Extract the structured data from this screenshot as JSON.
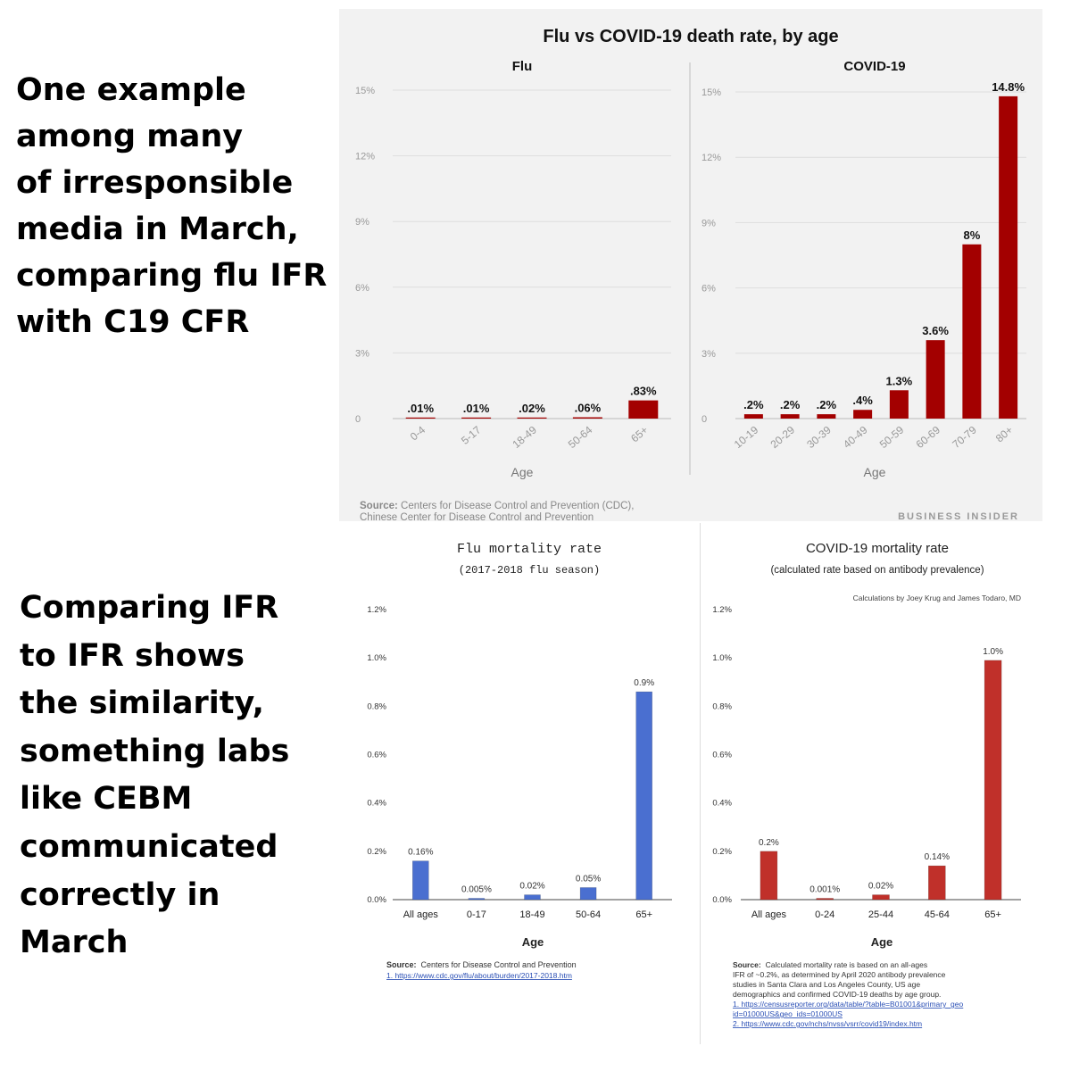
{
  "captions": {
    "top": "One example\namong many\nof irresponsible\nmedia in March,\ncomparing flu IFR\nwith C19 CFR",
    "bottom": "Comparing IFR\nto IFR shows\nthe similarity,\nsomething labs\nlike CEBM\ncommunicated\ncorrectly in\nMarch"
  },
  "colors": {
    "dark_red": "#a30000",
    "blue": "#4a6fd0",
    "red": "#c0302a"
  },
  "chart_data": [
    {
      "id": "bi_flu",
      "type": "bar",
      "title": "Flu vs COVID-19 death rate, by age",
      "subtitle": "Flu",
      "categories": [
        "0-4",
        "5-17",
        "18-49",
        "50-64",
        "65+"
      ],
      "values": [
        0.01,
        0.01,
        0.02,
        0.06,
        0.83
      ],
      "labels": [
        ".01%",
        ".01%",
        ".02%",
        ".06%",
        ".83%"
      ],
      "xlabel": "Age",
      "ylim": [
        0,
        15
      ],
      "yticks": [
        0,
        3,
        6,
        9,
        12,
        15
      ],
      "ytick_labels": [
        "0",
        "3%",
        "6%",
        "9%",
        "12%",
        "15%"
      ],
      "grid": true
    },
    {
      "id": "bi_covid",
      "type": "bar",
      "subtitle": "COVID-19",
      "categories": [
        "10-19",
        "20-29",
        "30-39",
        "40-49",
        "50-59",
        "60-69",
        "70-79",
        "80+"
      ],
      "values": [
        0.2,
        0.2,
        0.2,
        0.4,
        1.3,
        3.6,
        8,
        14.8
      ],
      "labels": [
        ".2%",
        ".2%",
        ".2%",
        ".4%",
        "1.3%",
        "3.6%",
        "8%",
        "14.8%"
      ],
      "xlabel": "Age",
      "ylim": [
        0,
        15
      ],
      "yticks": [
        0,
        3,
        6,
        9,
        12,
        15
      ],
      "ytick_labels": [
        "0",
        "3%",
        "6%",
        "9%",
        "12%",
        "15%"
      ],
      "grid": true,
      "source": "Source: Centers for Disease Control and Prevention (CDC),\nChinese Center for Disease Control and Prevention",
      "brand": "BUSINESS INSIDER"
    },
    {
      "id": "flu_mortality",
      "type": "bar",
      "title": "Flu mortality rate",
      "subtitle": "(2017-2018 flu season)",
      "categories": [
        "All ages",
        "0-17",
        "18-49",
        "50-64",
        "65+"
      ],
      "values": [
        0.16,
        0.005,
        0.02,
        0.05,
        0.86
      ],
      "labels": [
        "0.16%",
        "0.005%",
        "0.02%",
        "0.05%",
        "0.9%"
      ],
      "xlabel": "Age",
      "ylim": [
        0,
        1.2
      ],
      "yticks": [
        0,
        0.2,
        0.4,
        0.6,
        0.8,
        1.0,
        1.2
      ],
      "ytick_labels": [
        "0.0%",
        "0.2%",
        "0.4%",
        "0.6%",
        "0.8%",
        "1.0%",
        "1.2%"
      ],
      "source_label": "Source:",
      "source_text": "Centers for Disease Control and Prevention",
      "source_links": [
        "1. https://www.cdc.gov/flu/about/burden/2017-2018.htm"
      ]
    },
    {
      "id": "covid_mortality",
      "type": "bar",
      "title": "COVID-19 mortality rate",
      "subtitle": "(calculated rate based on antibody prevalence)",
      "credit": "Calculations by Joey Krug and James Todaro, MD",
      "categories": [
        "All ages",
        "0-24",
        "25-44",
        "45-64",
        "65+"
      ],
      "values": [
        0.2,
        0.001,
        0.02,
        0.14,
        0.99
      ],
      "labels": [
        "0.2%",
        "0.001%",
        "0.02%",
        "0.14%",
        "1.0%"
      ],
      "xlabel": "Age",
      "ylim": [
        0,
        1.2
      ],
      "yticks": [
        0,
        0.2,
        0.4,
        0.6,
        0.8,
        1.0,
        1.2
      ],
      "ytick_labels": [
        "0.0%",
        "0.2%",
        "0.4%",
        "0.6%",
        "0.8%",
        "1.0%",
        "1.2%"
      ],
      "source_label": "Source:",
      "source_text": "Calculated mortality rate is based on an all-ages\nIFR of ~0.2%, as determined by April 2020 antibody prevalence\nstudies in Santa Clara and Los Angeles County, US age\ndemographics and confirmed COVID-19 deaths by age group.",
      "source_links": [
        "1. https://censusreporter.org/data/table/?table=B01001&primary_geo",
        "id=01000US&geo_ids=01000US",
        "2. https://www.cdc.gov/nchs/nvss/vsrr/covid19/index.htm"
      ]
    }
  ]
}
